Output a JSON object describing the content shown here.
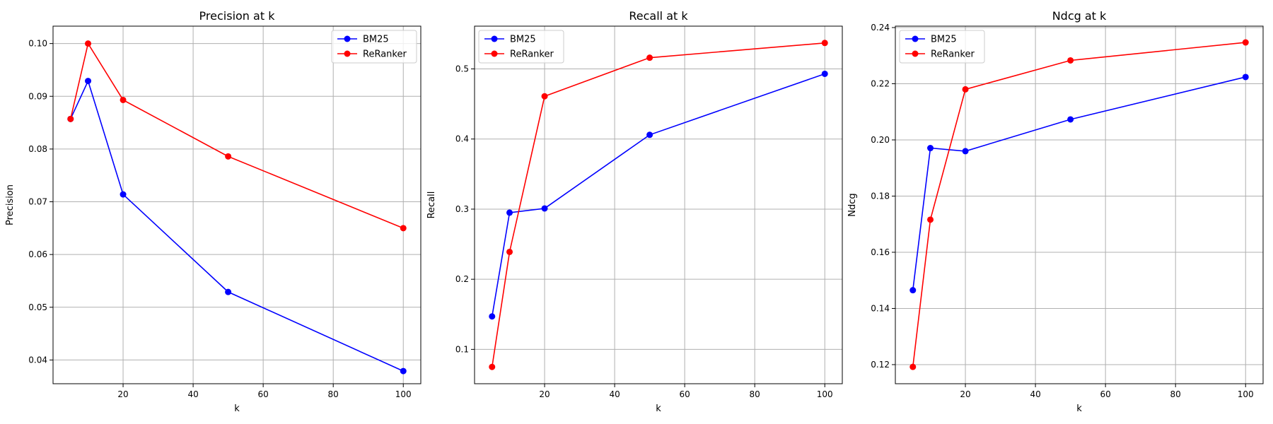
{
  "chart_data": [
    {
      "type": "line",
      "title": "Precision at k",
      "xlabel": "k",
      "ylabel": "Precision",
      "x": [
        5,
        10,
        20,
        50,
        100
      ],
      "xlim": [
        0,
        105
      ],
      "ylim": [
        0.0355,
        0.1033
      ],
      "xticks": [
        20,
        40,
        60,
        80,
        100
      ],
      "yticks": [
        0.04,
        0.05,
        0.06,
        0.07,
        0.08,
        0.09,
        0.1
      ],
      "ytick_labels": [
        "0.04",
        "0.05",
        "0.06",
        "0.07",
        "0.08",
        "0.09",
        "0.10"
      ],
      "grid": true,
      "legend_position": "top-right",
      "series": [
        {
          "name": "BM25",
          "color": "#0000ff",
          "values": [
            0.0857,
            0.0929,
            0.0714,
            0.0529,
            0.0379
          ]
        },
        {
          "name": "ReRanker",
          "color": "#ff0000",
          "values": [
            0.0857,
            0.1,
            0.0893,
            0.0786,
            0.065
          ]
        }
      ]
    },
    {
      "type": "line",
      "title": "Recall at k",
      "xlabel": "k",
      "ylabel": "Recall",
      "x": [
        5,
        10,
        20,
        50,
        100
      ],
      "xlim": [
        0,
        105
      ],
      "ylim": [
        0.051,
        0.561
      ],
      "xticks": [
        20,
        40,
        60,
        80,
        100
      ],
      "yticks": [
        0.1,
        0.2,
        0.3,
        0.4,
        0.5
      ],
      "ytick_labels": [
        "0.1",
        "0.2",
        "0.3",
        "0.4",
        "0.5"
      ],
      "grid": true,
      "legend_position": "top-left",
      "series": [
        {
          "name": "BM25",
          "color": "#0000ff",
          "values": [
            0.147,
            0.295,
            0.301,
            0.406,
            0.493
          ]
        },
        {
          "name": "ReRanker",
          "color": "#ff0000",
          "values": [
            0.075,
            0.239,
            0.461,
            0.516,
            0.537
          ]
        }
      ]
    },
    {
      "type": "line",
      "title": "Ndcg at k",
      "xlabel": "k",
      "ylabel": "Ndcg",
      "x": [
        5,
        10,
        20,
        50,
        100
      ],
      "xlim": [
        0,
        105
      ],
      "ylim": [
        0.1132,
        0.2405
      ],
      "xticks": [
        20,
        40,
        60,
        80,
        100
      ],
      "yticks": [
        0.12,
        0.14,
        0.16,
        0.18,
        0.2,
        0.22,
        0.24
      ],
      "ytick_labels": [
        "0.12",
        "0.14",
        "0.16",
        "0.18",
        "0.20",
        "0.22",
        "0.24"
      ],
      "grid": true,
      "legend_position": "top-left",
      "series": [
        {
          "name": "BM25",
          "color": "#0000ff",
          "values": [
            0.1465,
            0.1971,
            0.196,
            0.2073,
            0.2224
          ]
        },
        {
          "name": "ReRanker",
          "color": "#ff0000",
          "values": [
            0.1192,
            0.1716,
            0.218,
            0.2283,
            0.2347
          ]
        }
      ]
    }
  ]
}
